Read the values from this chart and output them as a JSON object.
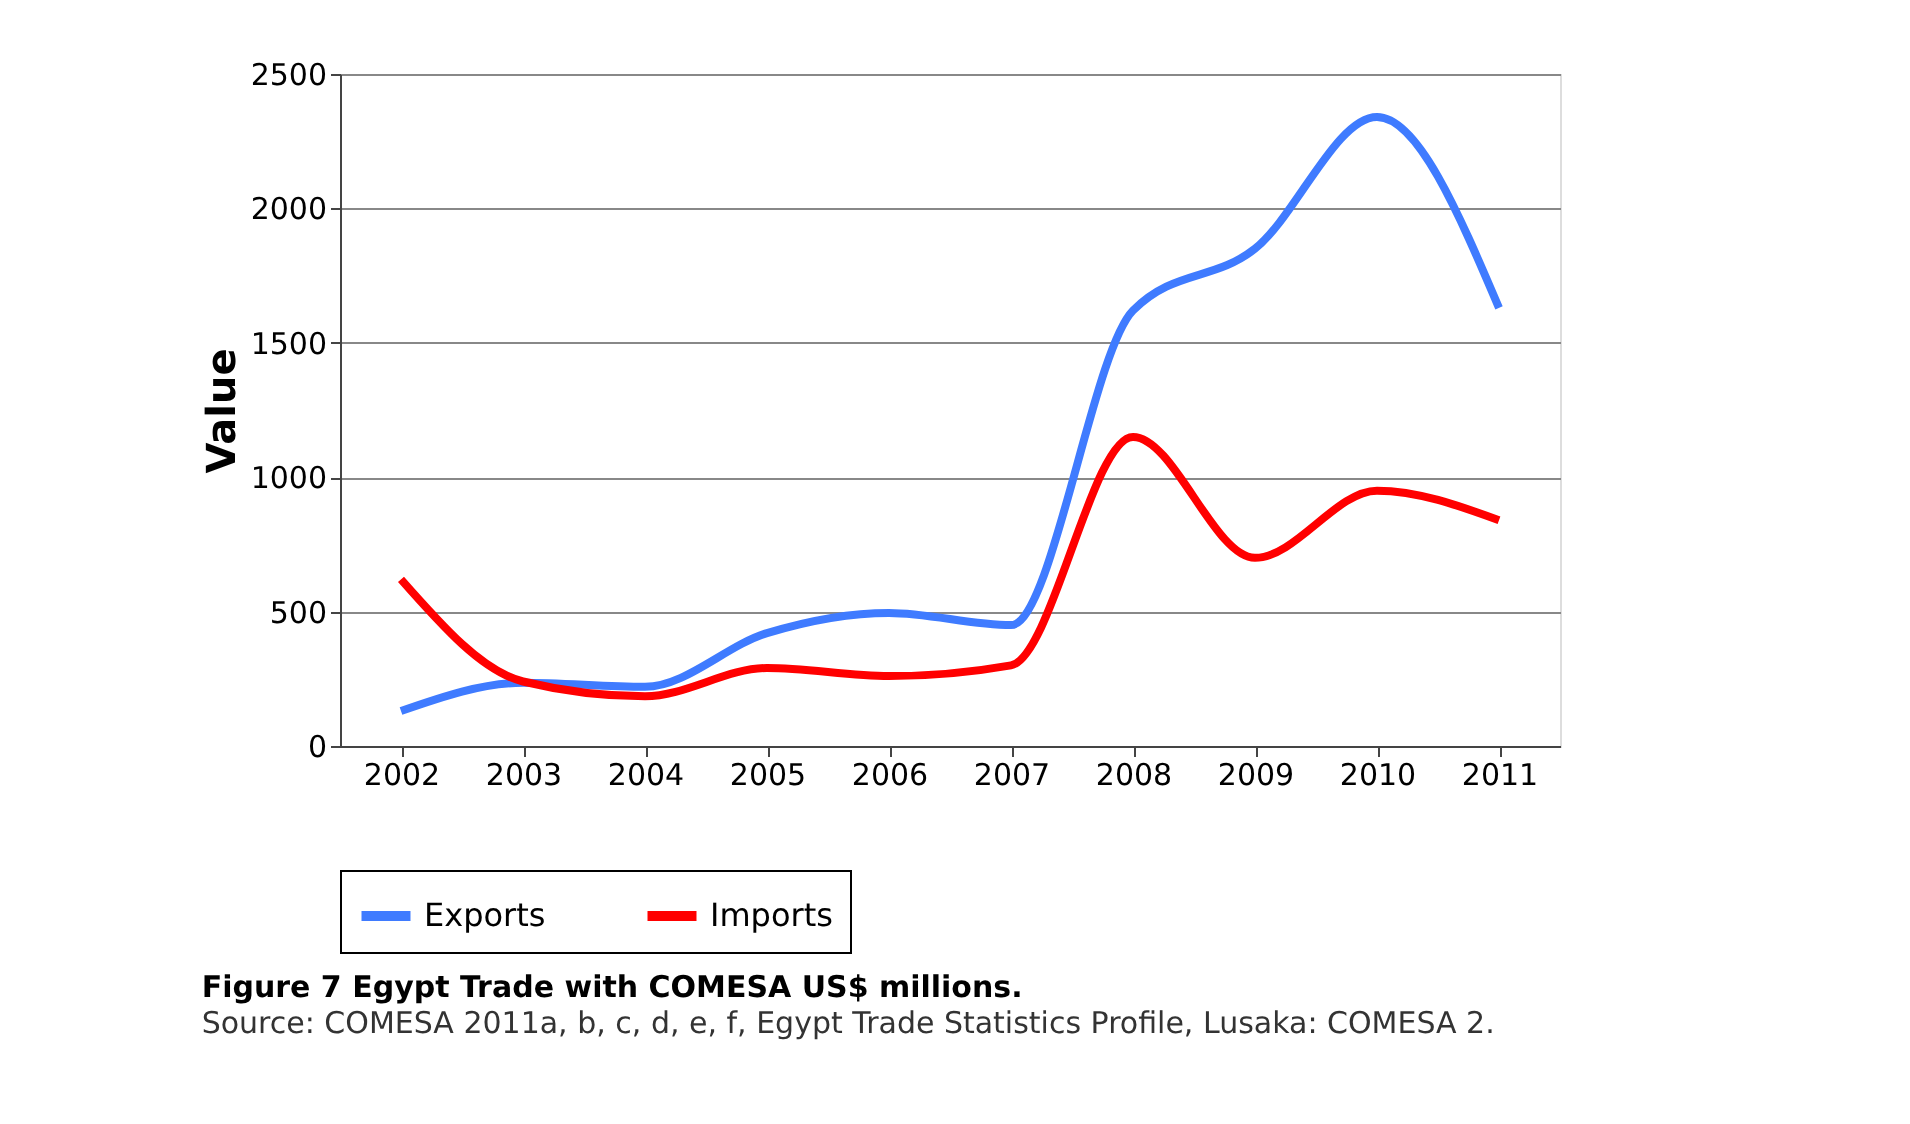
{
  "chart_data": {
    "type": "line",
    "title": "Figure 7 Egypt Trade with COMESA US$ millions.",
    "ylabel": "Value",
    "annotations": [
      "Source: COMESA 2011a, b, c, d, e, f, Egypt Trade Statistics Profile, Lusaka: COMESA 2."
    ],
    "categories": [
      "2002",
      "2003",
      "2004",
      "2005",
      "2006",
      "2007",
      "2008",
      "2009",
      "2010",
      "2011"
    ],
    "series": [
      {
        "name": "Exports",
        "color": "#3f7bff",
        "values": [
          130,
          235,
          220,
          420,
          495,
          450,
          1620,
          1850,
          2340,
          1630
        ]
      },
      {
        "name": "Imports",
        "color": "#ff0000",
        "values": [
          620,
          240,
          185,
          290,
          260,
          300,
          1150,
          700,
          950,
          840
        ]
      }
    ],
    "ylim": [
      0,
      2500
    ],
    "yticks": [
      0,
      500,
      1000,
      1500,
      2000,
      2500
    ],
    "grid": "y",
    "legend": "bottom",
    "marker": "none",
    "line_style": "solid"
  }
}
